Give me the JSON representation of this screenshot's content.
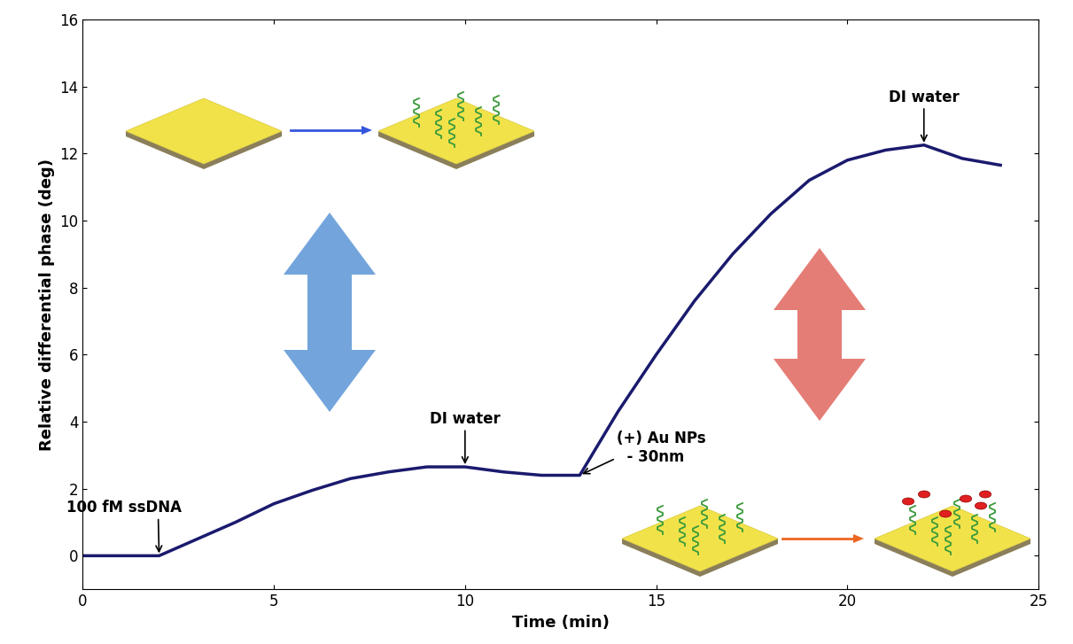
{
  "chart_data": {
    "type": "line",
    "x": [
      0,
      2,
      3,
      4,
      5,
      6,
      7,
      8,
      9,
      10,
      11,
      12,
      13,
      14,
      15,
      16,
      17,
      18,
      19,
      20,
      21,
      22,
      23,
      24
    ],
    "values": [
      0,
      0,
      0.5,
      1.0,
      1.55,
      1.95,
      2.3,
      2.5,
      2.65,
      2.65,
      2.5,
      2.4,
      2.4,
      4.3,
      6.0,
      7.6,
      9.0,
      10.2,
      11.2,
      11.8,
      12.1,
      12.25,
      11.85,
      11.65
    ],
    "color": "#1a1a6e",
    "xlabel": "Time (min)",
    "ylabel": "Relative differential phase (deg)",
    "xlim": [
      0,
      25
    ],
    "ylim": [
      -1,
      16
    ],
    "xticks": [
      0,
      5,
      10,
      15,
      20,
      25
    ],
    "yticks": [
      0,
      2,
      4,
      6,
      8,
      10,
      12,
      14,
      16
    ],
    "grid": false,
    "annotations": [
      {
        "text": "100 fM ssDNA",
        "x": 2,
        "y": 0
      },
      {
        "text": "DI water",
        "x": 10,
        "y": 2.65
      },
      {
        "text": "(+) Au NPs\n  - 30nm",
        "x": 13,
        "y": 2.4
      },
      {
        "text": "DI water",
        "x": 22,
        "y": 12.25
      }
    ]
  }
}
